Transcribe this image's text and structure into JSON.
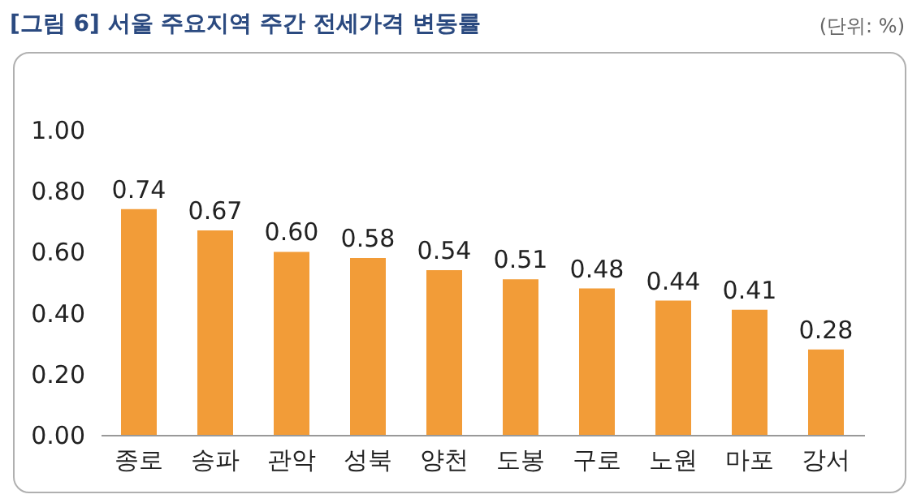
{
  "chart_data": {
    "type": "bar",
    "title": "[그림 6] 서울 주요지역 주간 전세가격 변동률",
    "annotations": [
      "(단위: %)"
    ],
    "categories": [
      "종로",
      "송파",
      "관악",
      "성북",
      "양천",
      "도봉",
      "구로",
      "노원",
      "마포",
      "강서"
    ],
    "values": [
      0.74,
      0.67,
      0.6,
      0.58,
      0.54,
      0.51,
      0.48,
      0.44,
      0.41,
      0.28
    ],
    "value_labels": [
      "0.74",
      "0.67",
      "0.60",
      "0.58",
      "0.54",
      "0.51",
      "0.48",
      "0.44",
      "0.41",
      "0.28"
    ],
    "color": "#f29c38",
    "ylim": [
      0,
      1
    ],
    "yticks": [
      {
        "value": 0,
        "label": "0.00"
      },
      {
        "value": 0.2,
        "label": "0.20"
      },
      {
        "value": 0.4,
        "label": "0.40"
      },
      {
        "value": 0.6,
        "label": "0.60"
      },
      {
        "value": 0.8,
        "label": "0.80"
      },
      {
        "value": 1,
        "label": "1.00"
      }
    ],
    "grid": false
  }
}
